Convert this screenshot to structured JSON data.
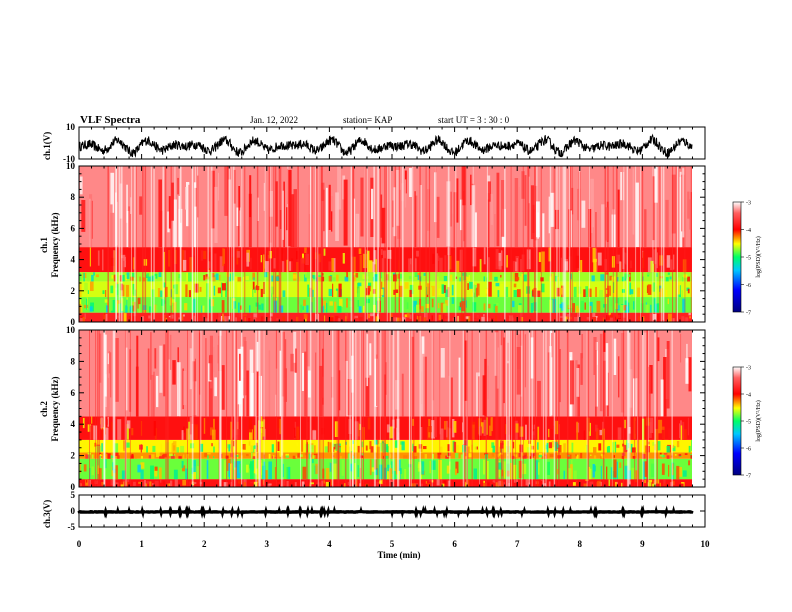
{
  "header": {
    "title": "VLF Spectra",
    "date": "Jan. 12, 2022",
    "station": "station= KAP",
    "start": "start  UT  =   3  : 30 : 0"
  },
  "colorbar": {
    "min_label": "-7",
    "max_label": "-3",
    "tick_labels": [
      "-3",
      "-4",
      "-5",
      "-6",
      "-7"
    ],
    "title": "log(PSD)(V²/Hz)",
    "colors": [
      "#000080",
      "#0000ff",
      "#00c8ff",
      "#00ff66",
      "#ffff00",
      "#ff0000",
      "#ffffff"
    ]
  },
  "chart_data": [
    {
      "type": "line",
      "panel": "ch1-waveform",
      "ylabel": "ch.1(V)",
      "ylim": [
        -10,
        10
      ],
      "y_tick_labels": [
        "10",
        "-10"
      ],
      "xlim": [
        0,
        10
      ],
      "description_color": "#000000"
    },
    {
      "type": "heatmap",
      "panel": "ch1-spectrogram",
      "ylabel": "ch.1 Frequency (kHz)",
      "ylabel_line1": "ch.1",
      "ylabel_line2": "Frequency  (kHz)",
      "ylim": [
        0,
        10
      ],
      "y_tick_labels": [
        "0",
        "2",
        "4",
        "6",
        "8",
        "10"
      ],
      "xlim": [
        0,
        10
      ],
      "bands": [
        {
          "f": [
            0,
            0.6
          ],
          "log_psd": -3.8
        },
        {
          "f": [
            0.6,
            1.6
          ],
          "log_psd": -4.8
        },
        {
          "f": [
            1.6,
            2.6
          ],
          "log_psd": -4.6
        },
        {
          "f": [
            2.6,
            3.2
          ],
          "log_psd": -4.7
        },
        {
          "f": [
            3.2,
            4.8
          ],
          "log_psd": -3.9
        },
        {
          "f": [
            4.8,
            10
          ],
          "log_psd": -3.3
        }
      ]
    },
    {
      "type": "heatmap",
      "panel": "ch2-spectrogram",
      "ylabel": "ch.2 Frequency (kHz)",
      "ylabel_line1": "ch.2",
      "ylabel_line2": "Frequency  (kHz)",
      "ylim": [
        0,
        10
      ],
      "y_tick_labels": [
        "0",
        "2",
        "4",
        "6",
        "8",
        "10"
      ],
      "xlim": [
        0,
        10
      ],
      "bands": [
        {
          "f": [
            0,
            0.5
          ],
          "log_psd": -3.9
        },
        {
          "f": [
            0.5,
            1.8
          ],
          "log_psd": -4.8
        },
        {
          "f": [
            1.8,
            2.2
          ],
          "log_psd": -4.3
        },
        {
          "f": [
            2.2,
            3.0
          ],
          "log_psd": -4.5
        },
        {
          "f": [
            3.0,
            4.5
          ],
          "log_psd": -3.9
        },
        {
          "f": [
            4.5,
            10
          ],
          "log_psd": -3.3
        }
      ]
    },
    {
      "type": "line",
      "panel": "ch3-waveform",
      "ylabel": "ch.3(V)",
      "ylim": [
        -5,
        5
      ],
      "y_tick_labels": [
        "5",
        "0",
        "-5"
      ],
      "xlim": [
        0,
        10
      ],
      "xlabel": "Time  (min)",
      "x_tick_labels": [
        "0",
        "1",
        "2",
        "3",
        "4",
        "5",
        "6",
        "7",
        "8",
        "9",
        "10"
      ]
    }
  ]
}
